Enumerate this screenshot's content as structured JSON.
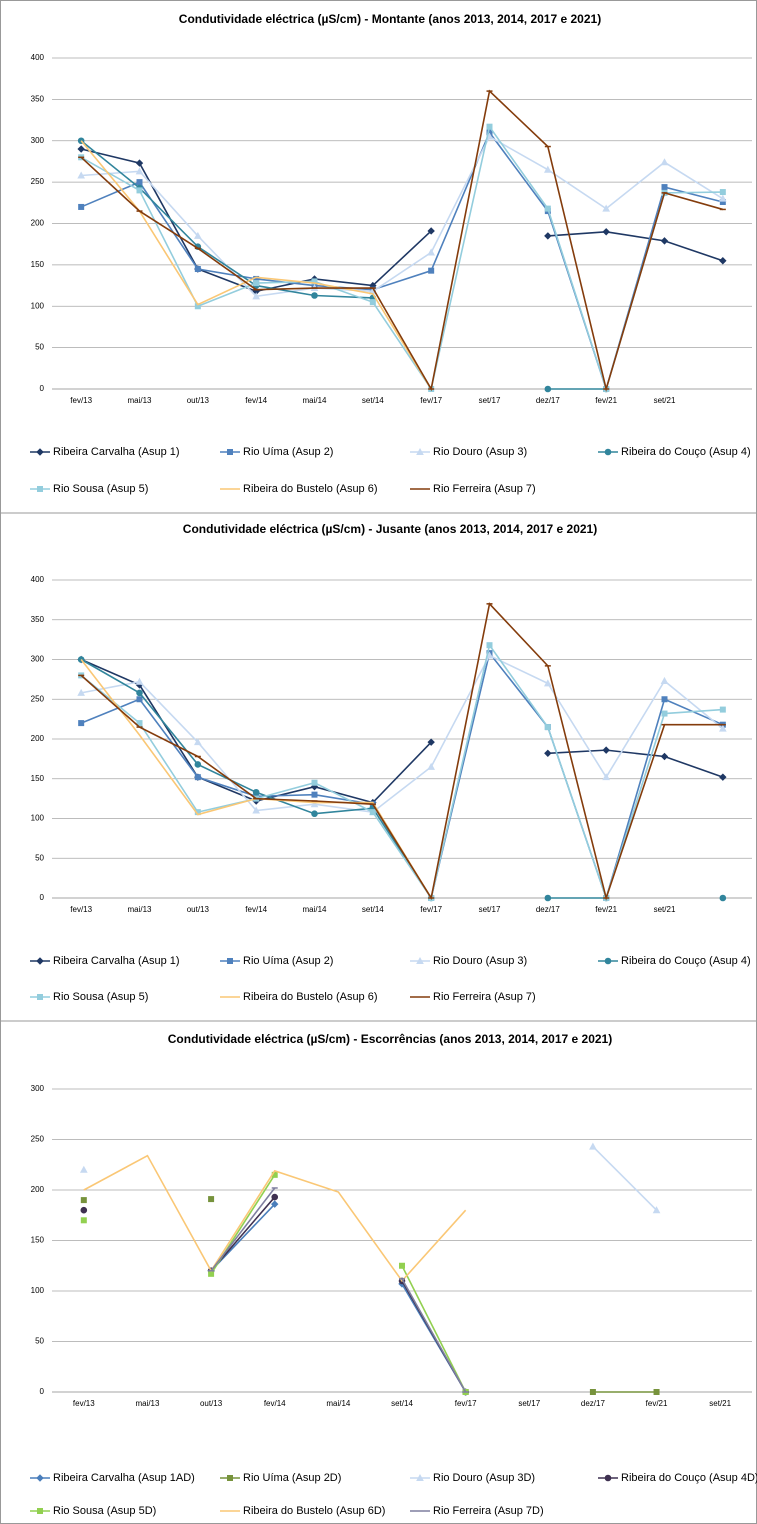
{
  "chart_data": [
    {
      "type": "line",
      "title": "Condutividade eléctrica (µS/cm) - Montante (anos 2013, 2014, 2017 e 2021)",
      "categories": [
        "fev/13",
        "mai/13",
        "out/13",
        "fev/14",
        "mai/14",
        "set/14",
        "fev/17",
        "set/17",
        "dez/17",
        "fev/21",
        "set/21",
        null
      ],
      "ylim": [
        0,
        400
      ],
      "yticks": [
        0,
        50,
        100,
        150,
        200,
        250,
        300,
        350,
        400
      ],
      "grid": true,
      "legend": "bottom",
      "series": [
        {
          "name": "Ribeira Carvalha (Asup 1)",
          "color": "#1f3864",
          "marker": "diamond",
          "values": [
            290,
            273,
            145,
            118,
            133,
            125,
            191,
            null,
            185,
            190,
            179,
            155
          ]
        },
        {
          "name": "Rio Uíma (Asup 2)",
          "color": "#4f81bd",
          "marker": "square",
          "values": [
            220,
            250,
            145,
            133,
            125,
            120,
            143,
            310,
            215,
            0,
            244,
            226
          ]
        },
        {
          "name": "Rio Douro (Asup 3)",
          "color": "#c6d9f1",
          "marker": "triangle",
          "values": [
            258,
            263,
            185,
            112,
            122,
            118,
            165,
            305,
            265,
            218,
            274,
            230
          ]
        },
        {
          "name": "Ribeira do Couço (Asup 4)",
          "color": "#31859c",
          "marker": "circle",
          "values": [
            300,
            243,
            172,
            125,
            113,
            110,
            null,
            null,
            0,
            0,
            null,
            null
          ]
        },
        {
          "name": "Rio Sousa (Asup 5)",
          "color": "#93cddd",
          "marker": "square",
          "values": [
            280,
            240,
            100,
            128,
            130,
            105,
            0,
            317,
            218,
            0,
            237,
            238
          ]
        },
        {
          "name": "Ribeira do Bustelo (Asup 6)",
          "color": "#fac775",
          "marker": "none",
          "values": [
            300,
            215,
            102,
            135,
            128,
            115,
            0,
            null,
            null,
            null,
            null,
            0
          ]
        },
        {
          "name": "Rio Ferreira (Asup 7)",
          "color": "#843c0c",
          "marker": "dash",
          "values": [
            280,
            215,
            170,
            120,
            122,
            122,
            0,
            360,
            293,
            0,
            237,
            217
          ]
        }
      ]
    },
    {
      "type": "line",
      "title": "Condutividade eléctrica (µS/cm) - Jusante (anos 2013, 2014, 2017 e 2021)",
      "categories": [
        "fev/13",
        "mai/13",
        "out/13",
        "fev/14",
        "mai/14",
        "set/14",
        "fev/17",
        "set/17",
        "dez/17",
        "fev/21",
        "set/21",
        null
      ],
      "ylim": [
        0,
        400
      ],
      "yticks": [
        0,
        50,
        100,
        150,
        200,
        250,
        300,
        350,
        400
      ],
      "grid": true,
      "legend": "bottom",
      "series": [
        {
          "name": "Ribeira Carvalha (Asup 1)",
          "color": "#1f3864",
          "marker": "diamond",
          "values": [
            300,
            268,
            152,
            122,
            140,
            120,
            196,
            null,
            182,
            186,
            178,
            152
          ]
        },
        {
          "name": "Rio Uíma (Asup 2)",
          "color": "#4f81bd",
          "marker": "square",
          "values": [
            220,
            250,
            152,
            128,
            130,
            118,
            0,
            308,
            215,
            0,
            250,
            218
          ]
        },
        {
          "name": "Rio Douro (Asup 3)",
          "color": "#c6d9f1",
          "marker": "triangle",
          "values": [
            258,
            272,
            196,
            110,
            118,
            108,
            165,
            305,
            270,
            152,
            273,
            213
          ]
        },
        {
          "name": "Ribeira do Couço (Asup 4)",
          "color": "#31859c",
          "marker": "circle",
          "values": [
            300,
            258,
            168,
            133,
            106,
            113,
            0,
            null,
            0,
            0,
            null,
            0
          ]
        },
        {
          "name": "Rio Sousa (Asup 5)",
          "color": "#93cddd",
          "marker": "square",
          "values": [
            280,
            220,
            108,
            125,
            145,
            108,
            0,
            318,
            215,
            0,
            232,
            237
          ]
        },
        {
          "name": "Ribeira do Bustelo (Asup 6)",
          "color": "#fac775",
          "marker": "none",
          "values": [
            300,
            205,
            105,
            125,
            120,
            120,
            0,
            null,
            null,
            null,
            null,
            null
          ]
        },
        {
          "name": "Rio Ferreira (Asup 7)",
          "color": "#843c0c",
          "marker": "dash",
          "values": [
            280,
            215,
            178,
            125,
            122,
            118,
            0,
            370,
            292,
            0,
            218,
            218
          ]
        }
      ]
    },
    {
      "type": "line",
      "title": "Condutividade eléctrica (µS/cm) - Escorrências (anos 2013, 2014, 2017 e 2021)",
      "categories": [
        "fev/13",
        "mai/13",
        "out/13",
        "fev/14",
        "mai/14",
        "set/14",
        "fev/17",
        "set/17",
        "dez/17",
        "fev/21",
        "set/21"
      ],
      "ylim": [
        0,
        300
      ],
      "yticks": [
        0,
        50,
        100,
        150,
        200,
        250,
        300
      ],
      "grid": true,
      "legend": "bottom",
      "series": [
        {
          "name": "Ribeira Carvalha (Asup 1AD)",
          "color": "#4a7ebb",
          "marker": "diamond",
          "values": [
            null,
            null,
            120,
            186,
            null,
            107,
            0,
            null,
            null,
            null,
            null
          ]
        },
        {
          "name": "Rio Uíma (Asup 2D)",
          "color": "#77933c",
          "marker": "square",
          "values": [
            190,
            null,
            191,
            null,
            null,
            null,
            0,
            null,
            0,
            0,
            null
          ]
        },
        {
          "name": "Rio Douro (Asup 3D)",
          "color": "#c6d9f1",
          "marker": "triangle",
          "values": [
            220,
            null,
            null,
            null,
            null,
            null,
            null,
            null,
            243,
            180,
            null
          ]
        },
        {
          "name": "Ribeira do Couço (Asup 4D)",
          "color": "#3f3151",
          "marker": "circle",
          "values": [
            180,
            null,
            120,
            193,
            null,
            110,
            0,
            null,
            null,
            null,
            null
          ]
        },
        {
          "name": "Rio Sousa (Asup 5D)",
          "color": "#92d050",
          "marker": "square",
          "values": [
            170,
            null,
            117,
            215,
            null,
            125,
            0,
            null,
            null,
            null,
            null
          ]
        },
        {
          "name": "Ribeira do Bustelo (Asup 6D)",
          "color": "#fac775",
          "marker": "none",
          "values": [
            200,
            234,
            120,
            219,
            198,
            110,
            180,
            null,
            null,
            null,
            null
          ]
        },
        {
          "name": "Rio Ferreira (Asup 7D)",
          "color": "#7f7f9f",
          "marker": "dash",
          "values": [
            null,
            null,
            120,
            202,
            null,
            112,
            0,
            null,
            null,
            null,
            null
          ]
        }
      ]
    }
  ]
}
